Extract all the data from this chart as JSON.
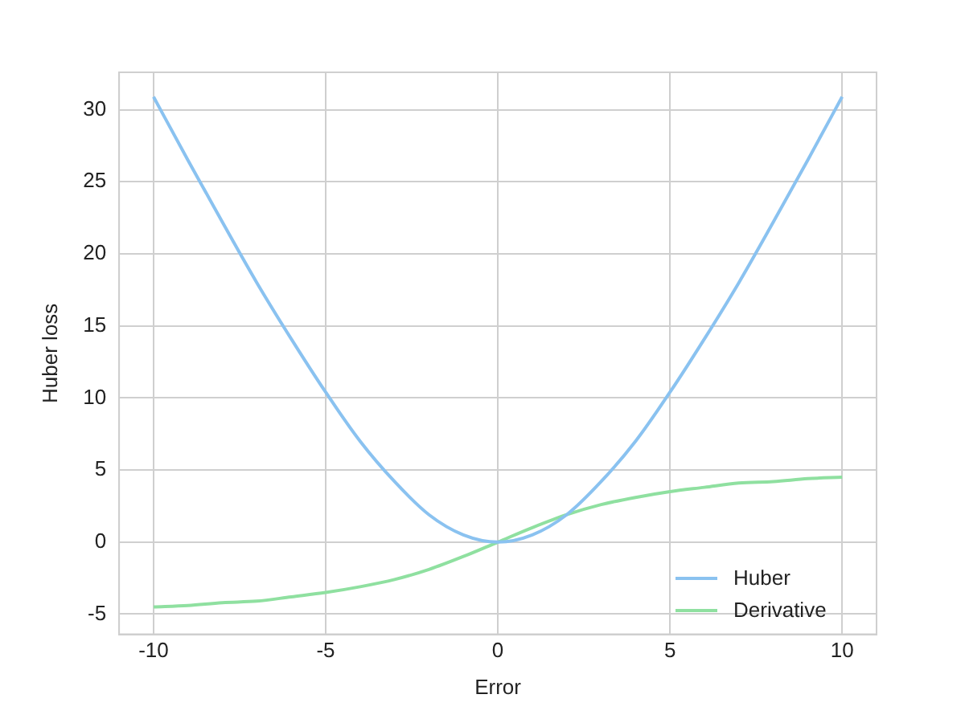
{
  "chart_data": {
    "type": "line",
    "xlabel": "Error",
    "ylabel": "Huber loss",
    "x": [
      -10,
      -9,
      -8,
      -7,
      -6,
      -5,
      -4,
      -3,
      -2,
      -1,
      0,
      1,
      2,
      3,
      4,
      5,
      6,
      7,
      8,
      9,
      10
    ],
    "series": [
      {
        "name": "Huber",
        "color": "#8ac2f0",
        "values": [
          30.9,
          26.5,
          22.2,
          18.0,
          14.1,
          10.4,
          7.0,
          4.2,
          1.9,
          0.5,
          0,
          0.5,
          1.9,
          4.2,
          7.0,
          10.4,
          14.1,
          18.0,
          22.2,
          26.5,
          30.9
        ]
      },
      {
        "name": "Derivative",
        "color": "#8fe0a0",
        "values": [
          -4.5,
          -4.4,
          -4.2,
          -4.1,
          -3.8,
          -3.5,
          -3.1,
          -2.6,
          -1.9,
          -1.0,
          0,
          1.0,
          1.9,
          2.6,
          3.1,
          3.5,
          3.8,
          4.1,
          4.2,
          4.4,
          4.5
        ]
      }
    ],
    "xlim": [
      -11,
      11
    ],
    "xticks": [
      -10,
      -5,
      0,
      5,
      10
    ],
    "ylim": [
      -6.4,
      32.6
    ],
    "yticks": [
      -5,
      0,
      5,
      10,
      15,
      20,
      25,
      30
    ],
    "grid": true,
    "legend": "bottom right",
    "marker": "none",
    "line_style": "solid"
  }
}
